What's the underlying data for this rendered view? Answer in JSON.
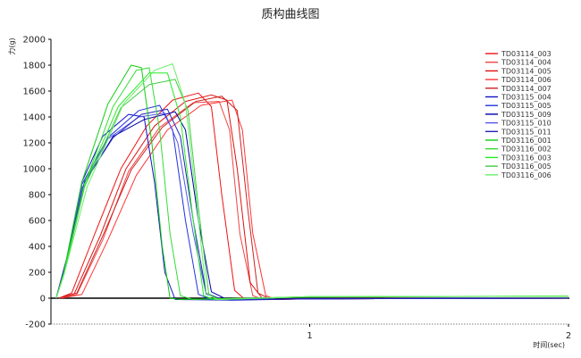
{
  "chart_data": {
    "type": "line",
    "title": "质构曲线图",
    "ylabel": "力(g)",
    "xlabel": "时间(sec)",
    "ylim": [
      -200,
      2000
    ],
    "xlim": [
      0,
      2
    ],
    "yticks": [
      "2000",
      "1800",
      "1600",
      "1400",
      "1200",
      "1000",
      "800",
      "600",
      "400",
      "200",
      "0",
      "-200"
    ],
    "xticks": [
      "1",
      "2"
    ],
    "legend_position": "top-right",
    "series": [
      {
        "name": "TD03114_003",
        "color": "#ee1111",
        "points": [
          [
            0.03,
            0
          ],
          [
            0.08,
            40
          ],
          [
            0.17,
            500
          ],
          [
            0.27,
            1000
          ],
          [
            0.37,
            1330
          ],
          [
            0.47,
            1530
          ],
          [
            0.57,
            1585
          ],
          [
            0.62,
            1480
          ],
          [
            0.66,
            800
          ],
          [
            0.71,
            60
          ],
          [
            0.75,
            -10
          ],
          [
            1.0,
            -5
          ],
          [
            2.0,
            0
          ]
        ]
      },
      {
        "name": "TD03114_004",
        "color": "#ee4444",
        "points": [
          [
            0.03,
            0
          ],
          [
            0.1,
            30
          ],
          [
            0.2,
            450
          ],
          [
            0.3,
            980
          ],
          [
            0.42,
            1320
          ],
          [
            0.55,
            1510
          ],
          [
            0.65,
            1520
          ],
          [
            0.69,
            1300
          ],
          [
            0.73,
            500
          ],
          [
            0.78,
            20
          ],
          [
            0.82,
            -10
          ],
          [
            1.0,
            -5
          ],
          [
            2.0,
            0
          ]
        ]
      },
      {
        "name": "TD03114_005",
        "color": "#dd1111",
        "points": [
          [
            0.03,
            0
          ],
          [
            0.09,
            35
          ],
          [
            0.19,
            480
          ],
          [
            0.29,
            1000
          ],
          [
            0.4,
            1330
          ],
          [
            0.52,
            1520
          ],
          [
            0.62,
            1570
          ],
          [
            0.68,
            1530
          ],
          [
            0.72,
            1000
          ],
          [
            0.77,
            120
          ],
          [
            0.82,
            -10
          ],
          [
            1.0,
            -5
          ],
          [
            2.0,
            0
          ]
        ]
      },
      {
        "name": "TD03114_006",
        "color": "#ff3333",
        "points": [
          [
            0.04,
            0
          ],
          [
            0.12,
            30
          ],
          [
            0.22,
            450
          ],
          [
            0.33,
            950
          ],
          [
            0.45,
            1300
          ],
          [
            0.58,
            1490
          ],
          [
            0.7,
            1530
          ],
          [
            0.74,
            1300
          ],
          [
            0.78,
            500
          ],
          [
            0.83,
            20
          ],
          [
            0.87,
            -10
          ],
          [
            1.0,
            -5
          ],
          [
            2.0,
            0
          ]
        ]
      },
      {
        "name": "TD03114_007",
        "color": "#cc2222",
        "points": [
          [
            0.03,
            0
          ],
          [
            0.1,
            40
          ],
          [
            0.2,
            480
          ],
          [
            0.31,
            990
          ],
          [
            0.43,
            1320
          ],
          [
            0.56,
            1520
          ],
          [
            0.66,
            1560
          ],
          [
            0.72,
            1450
          ],
          [
            0.76,
            700
          ],
          [
            0.8,
            40
          ],
          [
            0.85,
            -10
          ],
          [
            1.0,
            -5
          ],
          [
            2.0,
            0
          ]
        ]
      },
      {
        "name": "TD03115_004",
        "color": "#1111cc",
        "points": [
          [
            0.02,
            0
          ],
          [
            0.06,
            300
          ],
          [
            0.12,
            900
          ],
          [
            0.2,
            1250
          ],
          [
            0.3,
            1420
          ],
          [
            0.36,
            1400
          ],
          [
            0.4,
            900
          ],
          [
            0.44,
            200
          ],
          [
            0.48,
            -10
          ],
          [
            0.7,
            -15
          ],
          [
            1.0,
            -5
          ],
          [
            2.0,
            0
          ]
        ]
      },
      {
        "name": "TD03115_005",
        "color": "#2233dd",
        "points": [
          [
            0.02,
            0
          ],
          [
            0.06,
            280
          ],
          [
            0.12,
            880
          ],
          [
            0.22,
            1240
          ],
          [
            0.34,
            1450
          ],
          [
            0.42,
            1490
          ],
          [
            0.47,
            1300
          ],
          [
            0.52,
            600
          ],
          [
            0.57,
            30
          ],
          [
            0.62,
            -10
          ],
          [
            1.0,
            -5
          ],
          [
            2.0,
            0
          ]
        ]
      },
      {
        "name": "TD03115_009",
        "color": "#0000aa",
        "points": [
          [
            0.02,
            0
          ],
          [
            0.06,
            290
          ],
          [
            0.13,
            890
          ],
          [
            0.24,
            1250
          ],
          [
            0.36,
            1380
          ],
          [
            0.48,
            1440
          ],
          [
            0.52,
            1300
          ],
          [
            0.57,
            600
          ],
          [
            0.62,
            50
          ],
          [
            0.68,
            -10
          ],
          [
            1.0,
            -5
          ],
          [
            2.0,
            0
          ]
        ]
      },
      {
        "name": "TD03115_010",
        "color": "#5555ee",
        "points": [
          [
            0.02,
            0
          ],
          [
            0.06,
            270
          ],
          [
            0.12,
            850
          ],
          [
            0.22,
            1230
          ],
          [
            0.34,
            1400
          ],
          [
            0.44,
            1430
          ],
          [
            0.49,
            1200
          ],
          [
            0.55,
            500
          ],
          [
            0.6,
            30
          ],
          [
            0.66,
            -10
          ],
          [
            1.0,
            -5
          ],
          [
            2.0,
            0
          ]
        ]
      },
      {
        "name": "TD03115_011",
        "color": "#2222bb",
        "points": [
          [
            0.02,
            0
          ],
          [
            0.06,
            300
          ],
          [
            0.13,
            900
          ],
          [
            0.24,
            1240
          ],
          [
            0.35,
            1420
          ],
          [
            0.45,
            1460
          ],
          [
            0.5,
            1250
          ],
          [
            0.55,
            600
          ],
          [
            0.6,
            40
          ],
          [
            0.66,
            -10
          ],
          [
            1.0,
            -5
          ],
          [
            2.0,
            0
          ]
        ]
      },
      {
        "name": "TD03116_001",
        "color": "#11cc11",
        "points": [
          [
            0.02,
            0
          ],
          [
            0.05,
            200
          ],
          [
            0.12,
            900
          ],
          [
            0.22,
            1500
          ],
          [
            0.31,
            1800
          ],
          [
            0.35,
            1780
          ],
          [
            0.39,
            1200
          ],
          [
            0.43,
            400
          ],
          [
            0.46,
            0
          ],
          [
            0.5,
            -10
          ],
          [
            1.0,
            10
          ],
          [
            2.0,
            15
          ]
        ]
      },
      {
        "name": "TD03116_002",
        "color": "#33dd33",
        "points": [
          [
            0.02,
            0
          ],
          [
            0.05,
            190
          ],
          [
            0.13,
            880
          ],
          [
            0.24,
            1480
          ],
          [
            0.33,
            1760
          ],
          [
            0.38,
            1780
          ],
          [
            0.42,
            1300
          ],
          [
            0.46,
            500
          ],
          [
            0.5,
            20
          ],
          [
            0.55,
            -10
          ],
          [
            1.0,
            12
          ],
          [
            2.0,
            15
          ]
        ]
      },
      {
        "name": "TD03116_003",
        "color": "#22ee22",
        "points": [
          [
            0.02,
            0
          ],
          [
            0.05,
            190
          ],
          [
            0.13,
            880
          ],
          [
            0.26,
            1480
          ],
          [
            0.38,
            1740
          ],
          [
            0.45,
            1740
          ],
          [
            0.5,
            1400
          ],
          [
            0.55,
            600
          ],
          [
            0.59,
            20
          ],
          [
            0.63,
            -10
          ],
          [
            1.0,
            12
          ],
          [
            2.0,
            15
          ]
        ]
      },
      {
        "name": "TD03116_005",
        "color": "#44cc44",
        "points": [
          [
            0.02,
            0
          ],
          [
            0.05,
            180
          ],
          [
            0.13,
            860
          ],
          [
            0.27,
            1470
          ],
          [
            0.38,
            1650
          ],
          [
            0.48,
            1690
          ],
          [
            0.53,
            1450
          ],
          [
            0.57,
            700
          ],
          [
            0.61,
            30
          ],
          [
            0.65,
            -10
          ],
          [
            1.0,
            10
          ],
          [
            2.0,
            15
          ]
        ]
      },
      {
        "name": "TD03116_006",
        "color": "#66ee66",
        "points": [
          [
            0.02,
            0
          ],
          [
            0.05,
            180
          ],
          [
            0.14,
            860
          ],
          [
            0.28,
            1500
          ],
          [
            0.4,
            1760
          ],
          [
            0.47,
            1810
          ],
          [
            0.52,
            1500
          ],
          [
            0.56,
            800
          ],
          [
            0.6,
            40
          ],
          [
            0.64,
            -10
          ],
          [
            1.0,
            12
          ],
          [
            2.0,
            15
          ]
        ]
      }
    ]
  }
}
